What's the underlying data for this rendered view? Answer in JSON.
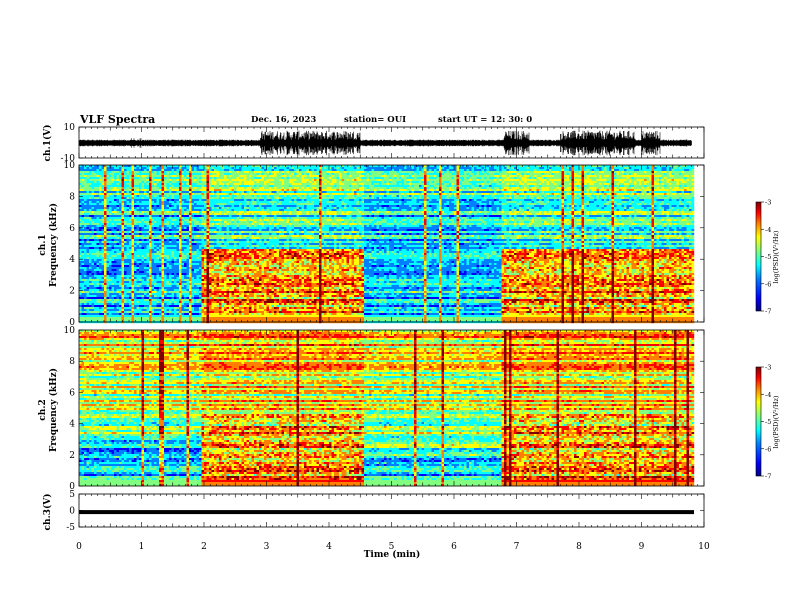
{
  "header": {
    "title": "VLF Spectra",
    "date": "Dec. 16, 2023",
    "station": "station= OUI",
    "start": "start  UT =   12: 30: 0"
  },
  "chart_data": [
    {
      "type": "line",
      "name": "ch1-waveform",
      "ylabel": "ch.1(V)",
      "ylim": [
        -10,
        10
      ],
      "yticks": [
        "10",
        "-10"
      ],
      "xlim": [
        0,
        10
      ],
      "bursts_min": [
        [
          2.9,
          4.5
        ],
        [
          6.8,
          7.2
        ],
        [
          7.7,
          8.9
        ],
        [
          9.0,
          9.3
        ]
      ],
      "gap_min": [
        [
          4.55,
          4.6
        ]
      ]
    },
    {
      "type": "heatmap",
      "name": "ch1-spectrogram",
      "ylabel": "Frequency (kHz)",
      "ylabel_prefix": "ch.1",
      "xlim": [
        0,
        10
      ],
      "ylim": [
        0,
        10
      ],
      "yticks": [
        "0",
        "2",
        "4",
        "6",
        "8",
        "10"
      ],
      "data_end_min": 9.8,
      "segments": [
        {
          "from": 0.0,
          "to": 1.95,
          "level": "quiet",
          "band_top_khz": 4.0
        },
        {
          "from": 1.95,
          "to": 4.55,
          "level": "active",
          "band_top_khz": 4.7
        },
        {
          "from": 4.55,
          "to": 6.75,
          "level": "quiet",
          "band_top_khz": 2.0
        },
        {
          "from": 6.75,
          "to": 9.8,
          "level": "active",
          "band_top_khz": 4.7
        }
      ],
      "colorbar": {
        "label": "log(PSD)(V²/Hz)",
        "ticks": [
          "-3",
          "-4",
          "-5",
          "-6",
          "-7"
        ],
        "range": [
          -7,
          -3
        ]
      }
    },
    {
      "type": "heatmap",
      "name": "ch2-spectrogram",
      "ylabel": "Frequency (kHz)",
      "ylabel_prefix": "ch.2",
      "xlim": [
        0,
        10
      ],
      "ylim": [
        0,
        10
      ],
      "yticks": [
        "0",
        "2",
        "4",
        "6",
        "8",
        "10"
      ],
      "data_end_min": 9.8,
      "segments": [
        {
          "from": 0.0,
          "to": 1.95,
          "level": "quiet",
          "band_top_khz": 3.0
        },
        {
          "from": 1.95,
          "to": 4.55,
          "level": "active",
          "band_top_khz": 4.7
        },
        {
          "from": 4.55,
          "to": 6.75,
          "level": "quiet",
          "band_top_khz": 2.0
        },
        {
          "from": 6.75,
          "to": 9.8,
          "level": "active",
          "band_top_khz": 4.7
        }
      ],
      "colorbar": {
        "label": "log(PSD)(V²/Hz)",
        "ticks": [
          "-3",
          "-4",
          "-5",
          "-6",
          "-7"
        ],
        "range": [
          -7,
          -3
        ]
      }
    },
    {
      "type": "line",
      "name": "ch3-waveform",
      "ylabel": "ch.3(V)",
      "ylim": [
        -5,
        5
      ],
      "yticks": [
        "5",
        "0",
        "-5"
      ],
      "xlim": [
        0,
        10
      ],
      "level_v": -0.5
    }
  ],
  "xaxis": {
    "label": "Time (min)",
    "ticks": [
      "0",
      "1",
      "2",
      "3",
      "4",
      "5",
      "6",
      "7",
      "8",
      "9",
      "10"
    ]
  },
  "colors": {
    "scale": [
      "#00007f",
      "#0000ff",
      "#0080ff",
      "#00ffff",
      "#80ff80",
      "#ffff00",
      "#ff8000",
      "#ff0000",
      "#7f0000"
    ]
  }
}
